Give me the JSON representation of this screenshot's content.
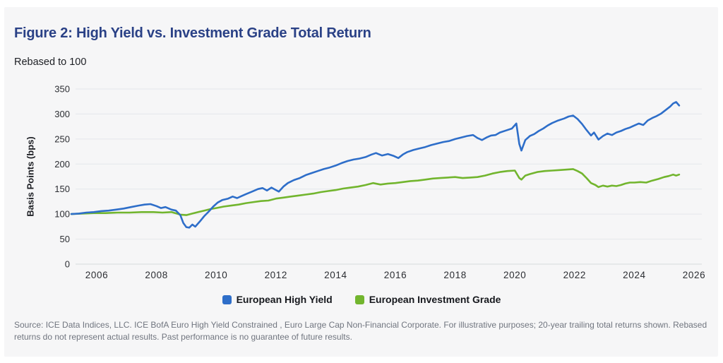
{
  "header": {
    "title": "Figure 2: High Yield vs. Investment Grade Total Return",
    "subtitle": "Rebased to 100"
  },
  "footer": {
    "source": "Source: ICE Data Indices, LLC. ICE BofA Euro High Yield Constrained , Euro Large Cap Non-Financial Corporate. For illustrative purposes; 20-year trailing total returns shown. Rebased returns do not represent actual results. Past performance is no guarantee of future results."
  },
  "chart_data": {
    "type": "line",
    "title": "Figure 2: High Yield vs. Investment Grade Total Return",
    "subtitle": "Rebased to 100",
    "xlabel": "",
    "ylabel": "Basis Points (bps)",
    "ylim": [
      0,
      350
    ],
    "xlim": [
      2005.1,
      2026.3
    ],
    "yticks": [
      0,
      50,
      100,
      150,
      200,
      250,
      300,
      350
    ],
    "xticks": [
      2006,
      2008,
      2010,
      2012,
      2014,
      2016,
      2018,
      2020,
      2022,
      2024,
      2026
    ],
    "grid": true,
    "legend_position": "bottom",
    "colors": {
      "high_yield_blue": "#2e6ec9",
      "investment_grade_green": "#72b52e",
      "gridline": "#e4e7eb",
      "title_navy": "#2a4186"
    },
    "series": [
      {
        "name": "European Investment Grade",
        "color": "#72b52e",
        "x": [
          2005.15,
          2005.5,
          2005.9,
          2006.3,
          2006.7,
          2007.1,
          2007.5,
          2007.9,
          2008.2,
          2008.5,
          2008.8,
          2009.0,
          2009.2,
          2009.4,
          2009.6,
          2009.8,
          2010.0,
          2010.25,
          2010.5,
          2010.75,
          2011.0,
          2011.25,
          2011.5,
          2011.75,
          2012.0,
          2012.25,
          2012.5,
          2012.75,
          2013.0,
          2013.25,
          2013.5,
          2013.75,
          2014.0,
          2014.25,
          2014.5,
          2014.75,
          2015.0,
          2015.25,
          2015.5,
          2015.75,
          2016.0,
          2016.25,
          2016.5,
          2016.75,
          2017.0,
          2017.25,
          2017.5,
          2017.75,
          2018.0,
          2018.25,
          2018.5,
          2018.75,
          2019.0,
          2019.25,
          2019.5,
          2019.75,
          2020.0,
          2020.15,
          2020.22,
          2020.35,
          2020.5,
          2020.75,
          2021.0,
          2021.25,
          2021.5,
          2021.75,
          2021.95,
          2022.1,
          2022.25,
          2022.4,
          2022.55,
          2022.7,
          2022.8,
          2022.95,
          2023.1,
          2023.25,
          2023.4,
          2023.55,
          2023.7,
          2023.85,
          2024.0,
          2024.2,
          2024.4,
          2024.6,
          2024.8,
          2025.0,
          2025.15,
          2025.3,
          2025.4,
          2025.5
        ],
        "values": [
          100,
          101,
          102,
          102,
          103,
          103,
          104,
          104,
          103,
          104,
          99,
          98,
          101,
          104,
          107,
          110,
          112,
          115,
          117,
          119,
          122,
          124,
          126,
          127,
          131,
          133,
          135,
          137,
          139,
          141,
          144,
          146,
          148,
          151,
          153,
          155,
          158,
          162,
          159,
          161,
          162,
          164,
          166,
          167,
          169,
          171,
          172,
          173,
          174,
          172,
          173,
          174,
          177,
          181,
          184,
          186,
          187,
          172,
          169,
          177,
          180,
          184,
          186,
          187,
          188,
          189,
          190,
          186,
          181,
          172,
          162,
          158,
          154,
          157,
          155,
          157,
          156,
          158,
          161,
          163,
          163,
          164,
          163,
          167,
          170,
          174,
          176,
          179,
          177,
          179
        ]
      },
      {
        "name": "European High Yield",
        "color": "#2e6ec9",
        "x": [
          2005.15,
          2005.4,
          2005.65,
          2005.9,
          2006.15,
          2006.4,
          2006.65,
          2006.9,
          2007.15,
          2007.4,
          2007.6,
          2007.8,
          2008.0,
          2008.15,
          2008.3,
          2008.5,
          2008.65,
          2008.8,
          2008.9,
          2009.0,
          2009.1,
          2009.2,
          2009.3,
          2009.45,
          2009.6,
          2009.75,
          2009.9,
          2010.05,
          2010.2,
          2010.4,
          2010.55,
          2010.7,
          2010.85,
          2011.0,
          2011.2,
          2011.4,
          2011.55,
          2011.7,
          2011.85,
          2012.0,
          2012.1,
          2012.25,
          2012.4,
          2012.6,
          2012.8,
          2013.0,
          2013.2,
          2013.4,
          2013.6,
          2013.8,
          2014.0,
          2014.2,
          2014.4,
          2014.6,
          2014.8,
          2015.0,
          2015.2,
          2015.35,
          2015.55,
          2015.75,
          2015.95,
          2016.1,
          2016.25,
          2016.4,
          2016.6,
          2016.8,
          2017.0,
          2017.2,
          2017.4,
          2017.6,
          2017.8,
          2018.0,
          2018.2,
          2018.4,
          2018.6,
          2018.75,
          2018.9,
          2019.05,
          2019.2,
          2019.35,
          2019.5,
          2019.7,
          2019.9,
          2020.05,
          2020.15,
          2020.22,
          2020.35,
          2020.5,
          2020.65,
          2020.8,
          2020.95,
          2021.1,
          2021.25,
          2021.45,
          2021.65,
          2021.8,
          2021.95,
          2022.1,
          2022.25,
          2022.4,
          2022.55,
          2022.65,
          2022.8,
          2022.95,
          2023.1,
          2023.25,
          2023.4,
          2023.55,
          2023.7,
          2023.85,
          2024.0,
          2024.15,
          2024.3,
          2024.45,
          2024.6,
          2024.75,
          2024.9,
          2025.05,
          2025.2,
          2025.3,
          2025.4,
          2025.5
        ],
        "values": [
          100,
          101,
          103,
          104,
          106,
          107,
          109,
          111,
          114,
          117,
          119,
          120,
          116,
          112,
          114,
          109,
          107,
          98,
          82,
          74,
          73,
          79,
          75,
          85,
          96,
          105,
          115,
          123,
          128,
          131,
          135,
          132,
          136,
          140,
          145,
          150,
          152,
          147,
          153,
          148,
          145,
          155,
          162,
          168,
          172,
          178,
          182,
          186,
          190,
          193,
          197,
          202,
          206,
          209,
          211,
          214,
          219,
          222,
          217,
          220,
          216,
          212,
          219,
          224,
          228,
          231,
          234,
          238,
          241,
          244,
          246,
          250,
          253,
          256,
          258,
          252,
          248,
          253,
          257,
          258,
          263,
          267,
          271,
          281,
          240,
          227,
          248,
          256,
          260,
          266,
          271,
          277,
          282,
          287,
          291,
          295,
          297,
          290,
          280,
          268,
          257,
          263,
          249,
          256,
          261,
          258,
          263,
          266,
          270,
          273,
          277,
          281,
          278,
          287,
          292,
          296,
          301,
          308,
          315,
          321,
          324,
          317
        ],
        "legend_order_first": true
      }
    ]
  }
}
